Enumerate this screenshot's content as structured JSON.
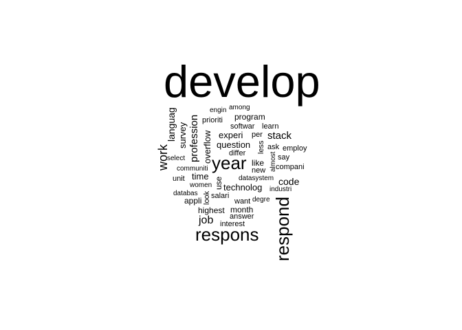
{
  "wordcloud": {
    "text_color": "#000000",
    "background_color": "#ffffff",
    "words": [
      {
        "text": "develop"
      },
      {
        "text": "engin"
      },
      {
        "text": "among"
      },
      {
        "text": "program"
      },
      {
        "text": "prioriti"
      },
      {
        "text": "softwar"
      },
      {
        "text": "learn"
      },
      {
        "text": "languag"
      },
      {
        "text": "survey"
      },
      {
        "text": "profession"
      },
      {
        "text": "experi"
      },
      {
        "text": "per"
      },
      {
        "text": "stack"
      },
      {
        "text": "question"
      },
      {
        "text": "less"
      },
      {
        "text": "ask"
      },
      {
        "text": "employ"
      },
      {
        "text": "work"
      },
      {
        "text": "overflow"
      },
      {
        "text": "differ"
      },
      {
        "text": "say"
      },
      {
        "text": "select"
      },
      {
        "text": "year"
      },
      {
        "text": "like"
      },
      {
        "text": "almost"
      },
      {
        "text": "compani"
      },
      {
        "text": "communiti"
      },
      {
        "text": "new"
      },
      {
        "text": "unit"
      },
      {
        "text": "time"
      },
      {
        "text": "use"
      },
      {
        "text": "datasystem"
      },
      {
        "text": "code"
      },
      {
        "text": "women"
      },
      {
        "text": "technolog"
      },
      {
        "text": "industri"
      },
      {
        "text": "databas"
      },
      {
        "text": "look"
      },
      {
        "text": "salari"
      },
      {
        "text": "appli"
      },
      {
        "text": "want"
      },
      {
        "text": "degre"
      },
      {
        "text": "highest"
      },
      {
        "text": "month"
      },
      {
        "text": "respond"
      },
      {
        "text": "answer"
      },
      {
        "text": "job"
      },
      {
        "text": "interest"
      },
      {
        "text": "respons"
      }
    ]
  }
}
